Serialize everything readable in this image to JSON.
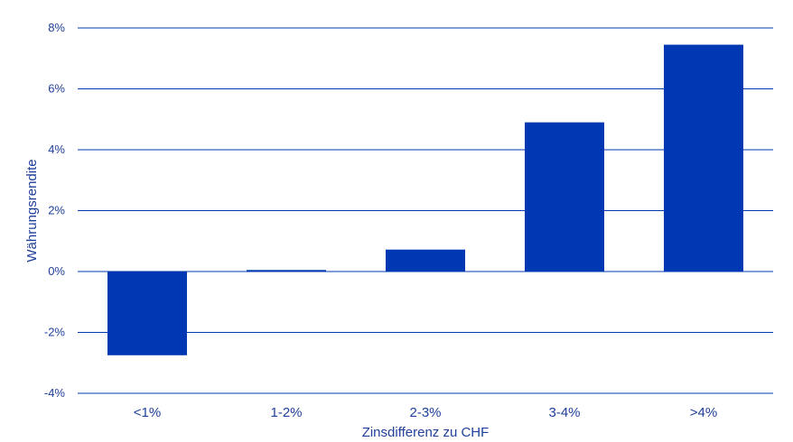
{
  "colors": {
    "bar": "#0038b3",
    "grid": "#0038b3",
    "text": "#1f3f9a"
  },
  "chart_data": {
    "type": "bar",
    "title": "",
    "xlabel": "Zinsdifferenz zu CHF",
    "ylabel": "Währungsrendite",
    "categories": [
      "<1%",
      "1-2%",
      "2-3%",
      "3-4%",
      ">4%"
    ],
    "series": [
      {
        "values": [
          -2.75,
          0.05,
          0.72,
          4.9,
          7.45
        ]
      }
    ],
    "ylim": [
      -4,
      8
    ],
    "yticks": [
      {
        "value": 8,
        "label": "8%"
      },
      {
        "value": 6,
        "label": "6%"
      },
      {
        "value": 4,
        "label": "4%"
      },
      {
        "value": 2,
        "label": "2%"
      },
      {
        "value": 0,
        "label": "0%"
      },
      {
        "value": -2,
        "label": "-2%"
      },
      {
        "value": -4,
        "label": "-4%"
      }
    ],
    "grid": true,
    "legend": "none"
  }
}
